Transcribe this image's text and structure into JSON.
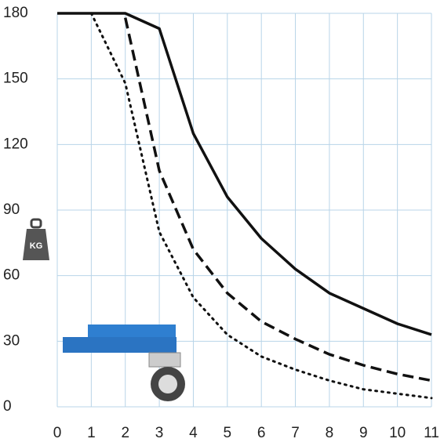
{
  "chart_data": {
    "type": "line",
    "x": [
      0,
      1,
      2,
      3,
      4,
      5,
      6,
      7,
      8,
      9,
      10,
      11
    ],
    "series": [
      {
        "color": "#111111",
        "dash": "solid",
        "values": [
          180,
          180,
          180,
          173,
          125,
          96,
          77,
          63,
          52,
          45,
          38,
          33
        ]
      },
      {
        "color": "#111111",
        "dash": "dashed",
        "values": [
          null,
          null,
          178,
          108,
          72,
          52,
          39,
          31,
          24,
          19,
          15,
          12
        ]
      },
      {
        "color": "#111111",
        "dash": "dotted",
        "values": [
          null,
          180,
          148,
          80,
          50,
          33,
          23,
          17,
          12,
          8,
          6,
          4
        ]
      }
    ],
    "xlim": [
      0,
      11
    ],
    "xticks": [
      0,
      1,
      2,
      3,
      4,
      5,
      6,
      7,
      8,
      9,
      10,
      11
    ],
    "ylim": [
      0,
      180
    ],
    "yticks": [
      0,
      30,
      60,
      90,
      120,
      150,
      180
    ],
    "grid": true,
    "annotation": "KG"
  }
}
